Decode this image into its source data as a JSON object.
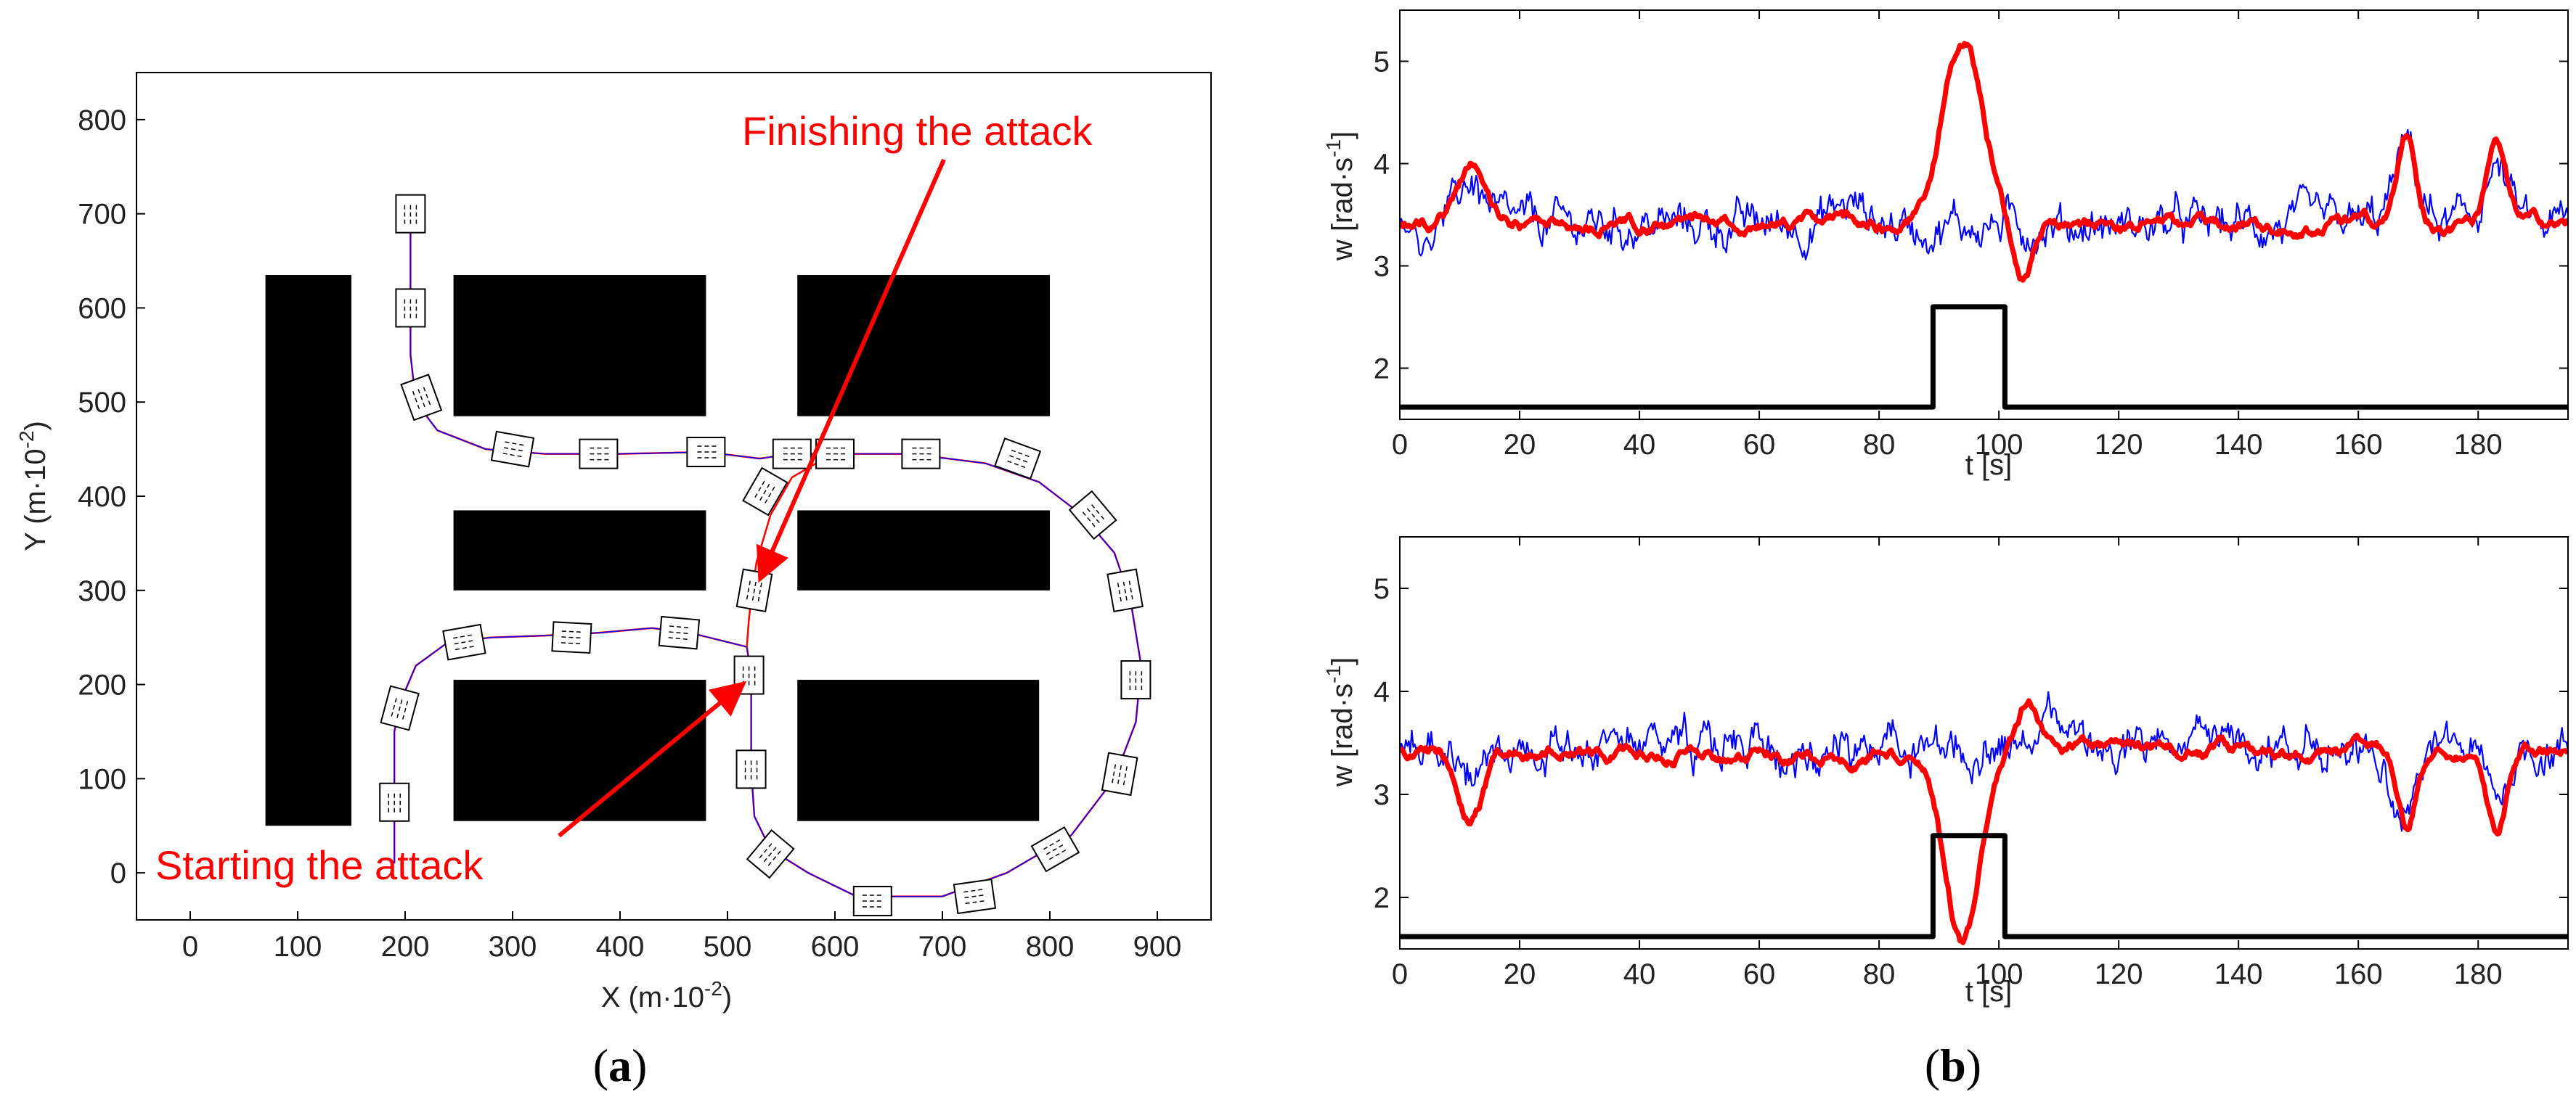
{
  "chart_data": [
    {
      "panel_label_prefix": "(",
      "panel_letter": "a",
      "panel_label_suffix": ")",
      "type": "scatter",
      "xlabel_main": "X (m·10",
      "xlabel_exp": "-2",
      "xlabel_end": ")",
      "ylabel_main": "Y (m·10",
      "ylabel_exp": "-2",
      "ylabel_end": ")",
      "xlim": [
        -50,
        950
      ],
      "ylim": [
        -50,
        850
      ],
      "xticks": [
        0,
        100,
        200,
        300,
        400,
        500,
        600,
        700,
        800,
        900
      ],
      "yticks": [
        0,
        100,
        200,
        300,
        400,
        500,
        600,
        700,
        800
      ],
      "grid": false,
      "obstacles": [
        {
          "x": [
            70,
            150
          ],
          "y": [
            50,
            635
          ]
        },
        {
          "x": [
            245,
            480
          ],
          "y": [
            485,
            635
          ]
        },
        {
          "x": [
            565,
            800
          ],
          "y": [
            485,
            635
          ]
        },
        {
          "x": [
            245,
            480
          ],
          "y": [
            300,
            385
          ]
        },
        {
          "x": [
            565,
            800
          ],
          "y": [
            300,
            385
          ]
        },
        {
          "x": [
            245,
            480
          ],
          "y": [
            55,
            205
          ]
        },
        {
          "x": [
            565,
            790
          ],
          "y": [
            55,
            205
          ]
        }
      ],
      "path": [
        [
          190,
          10
        ],
        [
          190,
          80
        ],
        [
          190,
          150
        ],
        [
          195,
          180
        ],
        [
          210,
          220
        ],
        [
          240,
          245
        ],
        [
          280,
          250
        ],
        [
          330,
          252
        ],
        [
          380,
          255
        ],
        [
          430,
          260
        ],
        [
          465,
          255
        ],
        [
          518,
          240
        ],
        [
          522,
          210
        ],
        [
          522,
          180
        ],
        [
          522,
          150
        ],
        [
          522,
          110
        ],
        [
          525,
          60
        ],
        [
          540,
          25
        ],
        [
          575,
          0
        ],
        [
          620,
          -25
        ],
        [
          700,
          -25
        ],
        [
          760,
          0
        ],
        [
          820,
          40
        ],
        [
          860,
          100
        ],
        [
          880,
          160
        ],
        [
          885,
          220
        ],
        [
          875,
          290
        ],
        [
          860,
          340
        ],
        [
          830,
          380
        ],
        [
          790,
          415
        ],
        [
          740,
          435
        ],
        [
          670,
          445
        ],
        [
          600,
          445
        ],
        [
          560,
          445
        ],
        [
          530,
          440
        ],
        [
          480,
          447
        ],
        [
          400,
          445
        ],
        [
          330,
          445
        ],
        [
          275,
          450
        ],
        [
          230,
          470
        ],
        [
          210,
          500
        ],
        [
          205,
          550
        ],
        [
          205,
          600
        ],
        [
          205,
          650
        ],
        [
          205,
          700
        ]
      ],
      "attack_path": [
        [
          518,
          240
        ],
        [
          520,
          270
        ],
        [
          523,
          300
        ],
        [
          527,
          330
        ],
        [
          540,
          380
        ],
        [
          560,
          420
        ],
        [
          590,
          440
        ],
        [
          615,
          445
        ]
      ],
      "vehicles": [
        {
          "x": 190,
          "y": 75,
          "angle": 90
        },
        {
          "x": 195,
          "y": 175,
          "angle": 75
        },
        {
          "x": 255,
          "y": 245,
          "angle": 10
        },
        {
          "x": 355,
          "y": 250,
          "angle": -3
        },
        {
          "x": 455,
          "y": 255,
          "angle": -5
        },
        {
          "x": 520,
          "y": 210,
          "angle": 90
        },
        {
          "x": 522,
          "y": 110,
          "angle": 90
        },
        {
          "x": 540,
          "y": 20,
          "angle": 50
        },
        {
          "x": 635,
          "y": -30,
          "angle": 0
        },
        {
          "x": 730,
          "y": -25,
          "angle": 8
        },
        {
          "x": 805,
          "y": 25,
          "angle": 30
        },
        {
          "x": 865,
          "y": 105,
          "angle": 80
        },
        {
          "x": 880,
          "y": 205,
          "angle": 90
        },
        {
          "x": 870,
          "y": 300,
          "angle": 100
        },
        {
          "x": 840,
          "y": 380,
          "angle": 130
        },
        {
          "x": 770,
          "y": 440,
          "angle": 160
        },
        {
          "x": 680,
          "y": 445,
          "angle": 180
        },
        {
          "x": 600,
          "y": 445,
          "angle": 180
        },
        {
          "x": 560,
          "y": 445,
          "angle": 180
        },
        {
          "x": 525,
          "y": 300,
          "angle": 80
        },
        {
          "x": 535,
          "y": 405,
          "angle": 60
        },
        {
          "x": 480,
          "y": 447,
          "angle": 180
        },
        {
          "x": 380,
          "y": 445,
          "angle": 180
        },
        {
          "x": 300,
          "y": 450,
          "angle": 170
        },
        {
          "x": 215,
          "y": 505,
          "angle": 110
        },
        {
          "x": 205,
          "y": 600,
          "angle": 90
        },
        {
          "x": 205,
          "y": 700,
          "angle": 90
        }
      ],
      "annotations": [
        {
          "text": "Finishing the attack",
          "target": [
            525,
            300
          ]
        },
        {
          "text": "Starting the attack",
          "target": [
            520,
            210
          ]
        }
      ]
    },
    {
      "panel_label_prefix": "(",
      "panel_letter": "b",
      "panel_label_suffix": ")",
      "type": "line",
      "plots": [
        {
          "xlabel": "t [s]",
          "ylabel_main": "w [rad·s",
          "ylabel_exp": "-1",
          "ylabel_end": "]",
          "xlim": [
            0,
            195
          ],
          "ylim": [
            1.5,
            5.5
          ],
          "xticks": [
            0,
            20,
            40,
            60,
            80,
            100,
            120,
            140,
            160,
            180
          ],
          "yticks": [
            2,
            3,
            4,
            5
          ],
          "series": [
            {
              "color": "#0000ff",
              "style": "thin",
              "kind": "noisy",
              "base": 3.4,
              "amp": 0.22,
              "bumps": [
                [
                  12,
                  0.45,
                  2
                ],
                [
                  168,
                  0.75,
                  2
                ],
                [
                  183,
                  0.55,
                  2
                ],
                [
                  75,
                  0.2,
                  3
                ]
              ]
            },
            {
              "color": "#ff0000",
              "style": "thick",
              "kind": "smooth",
              "base": 3.4,
              "amp": 0.09,
              "bumps": [
                [
                  12,
                  0.6,
                  2.5
                ],
                [
                  94,
                  1.8,
                  3.5
                ],
                [
                  104,
                  -0.5,
                  1.5
                ],
                [
                  168,
                  0.8,
                  1.5
                ],
                [
                  183,
                  0.7,
                  1.5
                ]
              ]
            },
            {
              "color": "#000000",
              "style": "thick",
              "kind": "step",
              "points": [
                [
                  0,
                  1.62
                ],
                [
                  89,
                  1.62
                ],
                [
                  89,
                  2.6
                ],
                [
                  101,
                  2.6
                ],
                [
                  101,
                  1.62
                ],
                [
                  195,
                  1.62
                ]
              ]
            }
          ]
        },
        {
          "xlabel": "t [s]",
          "ylabel_main": "w [rad·s",
          "ylabel_exp": "-1",
          "ylabel_end": "]",
          "xlim": [
            0,
            195
          ],
          "ylim": [
            1.5,
            5.5
          ],
          "xticks": [
            0,
            20,
            40,
            60,
            80,
            100,
            120,
            140,
            160,
            180
          ],
          "yticks": [
            2,
            3,
            4,
            5
          ],
          "series": [
            {
              "color": "#0000ff",
              "style": "thin",
              "kind": "noisy",
              "base": 3.45,
              "amp": 0.22,
              "bumps": [
                [
                  12,
                  -0.35,
                  2
                ],
                [
                  168,
                  -0.6,
                  2
                ],
                [
                  183,
                  -0.45,
                  2
                ],
                [
                  110,
                  0.25,
                  4
                ]
              ]
            },
            {
              "color": "#ff0000",
              "style": "thick",
              "kind": "smooth",
              "base": 3.42,
              "amp": 0.09,
              "bumps": [
                [
                  12,
                  -0.55,
                  2
                ],
                [
                  94,
                  -1.85,
                  3
                ],
                [
                  105,
                  0.4,
                  1.5
                ],
                [
                  168,
                  -0.8,
                  1.5
                ],
                [
                  183,
                  -0.75,
                  1.5
                ]
              ]
            },
            {
              "color": "#000000",
              "style": "thick",
              "kind": "step",
              "points": [
                [
                  0,
                  1.62
                ],
                [
                  89,
                  1.62
                ],
                [
                  89,
                  2.6
                ],
                [
                  101,
                  2.6
                ],
                [
                  101,
                  1.62
                ],
                [
                  195,
                  1.62
                ]
              ]
            }
          ]
        }
      ]
    }
  ]
}
